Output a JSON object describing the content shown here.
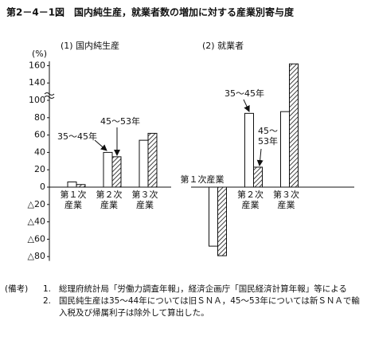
{
  "title": "第2－4－1図　国内純生産，就業者数の増加に対する産業別寄与度",
  "chart_data": [
    {
      "type": "bar",
      "title": "(1) 国内純生産",
      "ylabel": "(%)",
      "categories": [
        "第１次産業",
        "第２次産業",
        "第３次産業"
      ],
      "series": [
        {
          "name": "35～45年",
          "color": "#ffffff",
          "values": [
            6,
            40,
            54
          ]
        },
        {
          "name": "45～53年",
          "color": "#ffffff",
          "pattern": "diagonal",
          "values": [
            3,
            35,
            62
          ]
        }
      ],
      "ylim": [
        -85,
        165
      ],
      "axis_break": [
        100,
        140
      ],
      "yticks": [
        {
          "value": 160,
          "label": "160"
        },
        {
          "value": 140,
          "label": "140"
        },
        100,
        80,
        60,
        40,
        20,
        0,
        {
          "value": -20,
          "label": "△20"
        },
        {
          "value": -40,
          "label": "△40"
        },
        {
          "value": -60,
          "label": "△60"
        },
        {
          "value": -80,
          "label": "△80"
        }
      ]
    },
    {
      "type": "bar",
      "title": "(2) 就業者",
      "categories": [
        "第１次産業",
        "第２次産業",
        "第３次産業"
      ],
      "series": [
        {
          "name": "35～45年",
          "color": "#ffffff",
          "values": [
            -68,
            85,
            87
          ]
        },
        {
          "name": "45～53年",
          "color": "#ffffff",
          "pattern": "diagonal",
          "values": [
            -79,
            23,
            162
          ]
        }
      ],
      "ylim": [
        -85,
        165
      ],
      "axis_break": [
        100,
        140
      ]
    }
  ],
  "notes": {
    "label": "(備考)",
    "items": [
      {
        "number": "1.",
        "text": "総理府統計局「労働力調査年報」，経済企画庁「国民経済計算年報」等による"
      },
      {
        "number": "2.",
        "text": "国民純生産は35～44年については旧ＳＮＡ，45～53年については新ＳＮＡで輸入税及び帰属利子は除外して算出した。"
      }
    ]
  }
}
